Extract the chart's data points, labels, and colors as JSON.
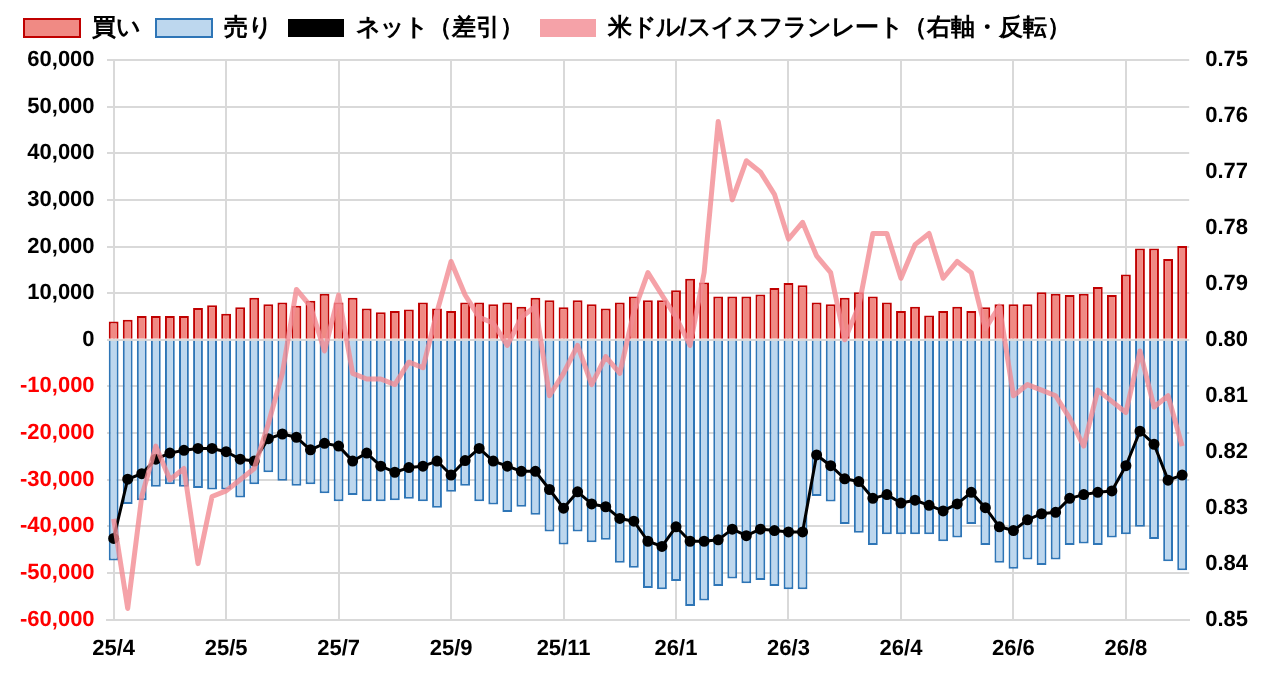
{
  "chart_data": {
    "type": "bar",
    "stacked": true,
    "grid": true,
    "legend": "top",
    "categories": [
      "25/4",
      null,
      null,
      null,
      null,
      null,
      null,
      null,
      "25/5",
      null,
      null,
      null,
      null,
      null,
      null,
      null,
      "25/7",
      null,
      null,
      null,
      null,
      null,
      null,
      null,
      "25/9",
      null,
      null,
      null,
      null,
      null,
      null,
      null,
      "25/11",
      null,
      null,
      null,
      null,
      null,
      null,
      null,
      "26/1",
      null,
      null,
      null,
      null,
      null,
      null,
      null,
      "26/3",
      null,
      null,
      null,
      null,
      null,
      null,
      null,
      "26/4",
      null,
      null,
      null,
      null,
      null,
      null,
      null,
      "26/6",
      null,
      null,
      null,
      null,
      null,
      null,
      null,
      "26/8",
      null,
      null,
      null,
      null
    ],
    "series": [
      {
        "name": "買い",
        "color": "#f08a84",
        "values": [
          3900,
          4300,
          5100,
          5100,
          5100,
          5100,
          6800,
          7400,
          5600,
          7000,
          9000,
          7600,
          8000,
          7300,
          8400,
          9900,
          8000,
          9000,
          6700,
          5900,
          6200,
          6500,
          8000,
          6700,
          6200,
          8000,
          8000,
          7600,
          8000,
          7100,
          9000,
          8500,
          7000,
          8500,
          7600,
          6700,
          8000,
          9300,
          8500,
          8500,
          10600,
          13100,
          12300,
          9300,
          9300,
          9300,
          9700,
          11100,
          12200,
          11700,
          8000,
          7600,
          9000,
          10200,
          9300,
          8000,
          6200,
          7100,
          5200,
          6200,
          7100,
          6200,
          7000,
          7600,
          7600,
          7600,
          10200,
          9900,
          9600,
          9900,
          11300,
          9600,
          14000,
          19600,
          19600,
          17300,
          20100
        ]
      },
      {
        "name": "売り",
        "color": "#bdd7ee",
        "values": [
          -47300,
          -35200,
          -34400,
          -31500,
          -31000,
          -31500,
          -31800,
          -32100,
          -32100,
          -33800,
          -31000,
          -28400,
          -30200,
          -31300,
          -31000,
          -32900,
          -34600,
          -33300,
          -34600,
          -34600,
          -34400,
          -34100,
          -34600,
          -36000,
          -32600,
          -31300,
          -34600,
          -35300,
          -36900,
          -35800,
          -37500,
          -41100,
          -43900,
          -41100,
          -43400,
          -42900,
          -47800,
          -48900,
          -53200,
          -53500,
          -51700,
          -57100,
          -55900,
          -52800,
          -51200,
          -52200,
          -51500,
          -52800,
          -53500,
          -53500,
          -33500,
          -34700,
          -39500,
          -41400,
          -44000,
          -41700,
          -41700,
          -41700,
          -41700,
          -43200,
          -42400,
          -39500,
          -44000,
          -47800,
          -49100,
          -47100,
          -48300,
          -47100,
          -44000,
          -43700,
          -44000,
          -42400,
          -41700,
          -40100,
          -42700,
          -47500,
          -49400
        ]
      },
      {
        "name": "ネット（差引）",
        "type": "line",
        "marker": "circle",
        "color": "#000000",
        "values": [
          -42600,
          -29900,
          -28700,
          -25600,
          -24300,
          -23700,
          -23300,
          -23300,
          -24000,
          -25600,
          -26000,
          -21200,
          -20200,
          -20900,
          -23600,
          -22200,
          -22800,
          -26000,
          -24300,
          -27100,
          -28400,
          -27400,
          -27100,
          -26000,
          -29000,
          -25900,
          -23300,
          -26000,
          -27100,
          -28200,
          -28200,
          -32100,
          -36100,
          -32600,
          -35200,
          -35800,
          -38300,
          -38900,
          -43200,
          -44300,
          -40100,
          -43200,
          -43200,
          -42900,
          -40600,
          -42000,
          -40600,
          -40900,
          -41200,
          -41200,
          -24700,
          -27000,
          -29800,
          -30400,
          -34000,
          -33200,
          -35000,
          -34400,
          -35500,
          -36700,
          -35200,
          -32700,
          -36000,
          -40100,
          -40900,
          -38600,
          -37300,
          -37000,
          -34000,
          -33200,
          -32700,
          -32400,
          -27000,
          -19600,
          -22400,
          -30100,
          -29000
        ]
      },
      {
        "name": "米ドル/スイスフランレート（右軸・反転）",
        "type": "line",
        "axis": "y2",
        "marker": "none",
        "color": "#f28b92",
        "values": [
          0.832,
          0.848,
          0.828,
          0.819,
          0.825,
          0.823,
          0.84,
          0.828,
          0.827,
          0.825,
          0.823,
          0.815,
          0.806,
          0.791,
          0.794,
          0.802,
          0.792,
          0.806,
          0.807,
          0.807,
          0.808,
          0.804,
          0.805,
          0.795,
          0.786,
          0.792,
          0.796,
          0.797,
          0.801,
          0.796,
          0.794,
          0.81,
          0.806,
          0.801,
          0.808,
          0.803,
          0.806,
          0.795,
          0.788,
          0.792,
          0.796,
          0.801,
          0.788,
          0.761,
          0.775,
          0.768,
          0.77,
          0.774,
          0.782,
          0.779,
          0.785,
          0.788,
          0.8,
          0.794,
          0.781,
          0.781,
          0.789,
          0.783,
          0.781,
          0.789,
          0.786,
          0.788,
          0.798,
          0.794,
          0.81,
          0.808,
          0.809,
          0.81,
          0.814,
          0.819,
          0.809,
          0.811,
          0.813,
          0.802,
          0.812,
          0.81,
          0.819
        ]
      }
    ],
    "ylim": [
      -60000,
      60000
    ],
    "yticks": [
      {
        "value": 60000,
        "label": "60,000"
      },
      {
        "value": 50000,
        "label": "50,000"
      },
      {
        "value": 40000,
        "label": "40,000"
      },
      {
        "value": 30000,
        "label": "30,000"
      },
      {
        "value": 20000,
        "label": "20,000"
      },
      {
        "value": 10000,
        "label": "10,000"
      },
      0,
      {
        "value": -10000,
        "label": "-10,000"
      },
      {
        "value": -20000,
        "label": "-20,000"
      },
      {
        "value": -30000,
        "label": "-30,000"
      },
      {
        "value": -40000,
        "label": "-40,000"
      },
      {
        "value": -50000,
        "label": "-50,000"
      },
      {
        "value": -60000,
        "label": "-60,000"
      }
    ],
    "y2lim": [
      0.85,
      0.75
    ],
    "y2ticks": [
      0.75,
      0.76,
      0.77,
      0.78,
      0.79,
      {
        "value": 0.8,
        "label": "0.80"
      },
      0.81,
      0.82,
      0.83,
      0.84,
      0.85
    ]
  }
}
